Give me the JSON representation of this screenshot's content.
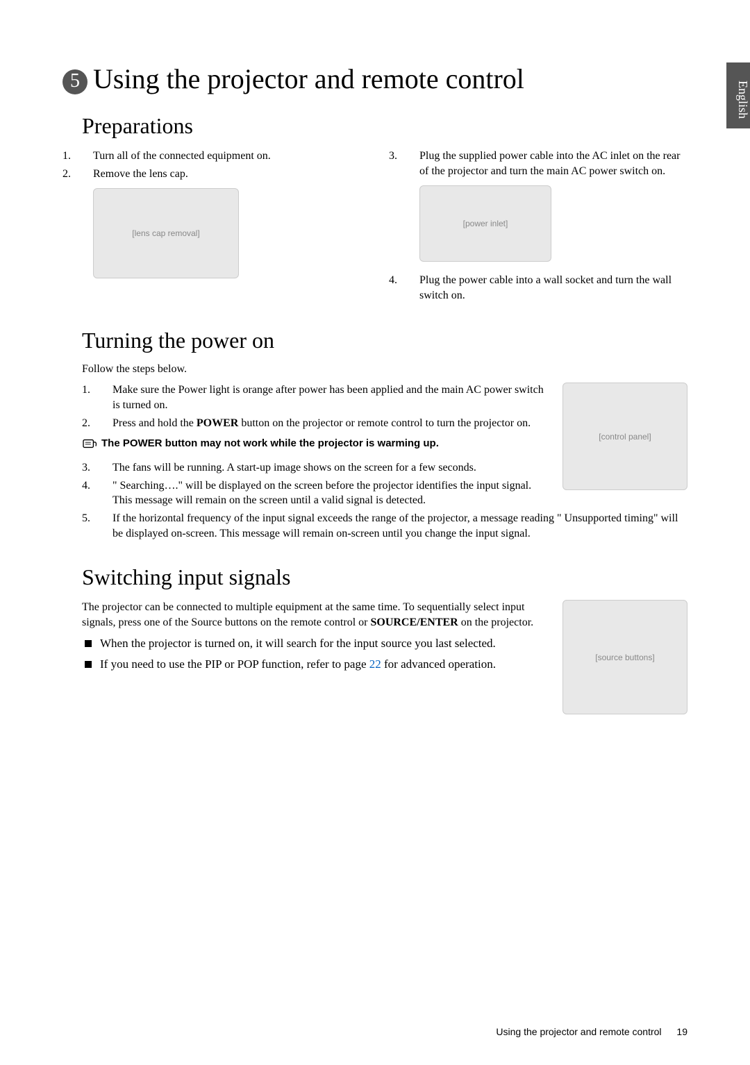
{
  "language_tab": "English",
  "chapter_number": "5",
  "main_title": "Using the projector and remote control",
  "preparations": {
    "heading": "Preparations",
    "left_list": [
      "Turn all of the connected equipment on.",
      "Remove the lens cap."
    ],
    "right_list_3": "Plug the supplied power cable into the AC inlet on the rear of the projector and turn the main AC power switch on.",
    "right_list_4": "Plug the power cable into a wall socket and turn the wall switch on."
  },
  "turning_on": {
    "heading": "Turning the power on",
    "intro": "Follow the steps below.",
    "items_1_2": [
      "Make sure the Power light is orange after power has been applied and the main AC power switch is turned on.",
      "Press and hold the POWER button on the projector or remote control to turn the projector on."
    ],
    "note": "The POWER button may not work while the projector is warming up.",
    "items_3_5": [
      "The fans will be running. A start-up image shows on the screen for a few seconds.",
      "\" Searching….\" will be displayed on the screen before the projector identifies the input signal. This message will remain on the screen until a valid signal is detected.",
      "If the horizontal frequency of the input signal exceeds the range of the projector, a message reading \" Unsupported timing\" will be displayed on-screen. This message will remain on-screen until you change the input signal."
    ]
  },
  "switching": {
    "heading": "Switching input signals",
    "intro": "The projector can be connected to multiple equipment at the same time. To sequentially select input signals, press one of the Source buttons on the remote control or SOURCE/ENTER on the projector.",
    "bullets": [
      "When the projector is turned on, it will search for the input source you last selected.",
      "If you need to use the PIP or POP function, refer to page 22 for advanced operation."
    ],
    "link_page": "22"
  },
  "footer": {
    "text": "Using the projector and remote control",
    "page": "19"
  },
  "image_alts": {
    "lens": "[lens cap removal]",
    "power": "[power inlet]",
    "panel1": "[control panel]",
    "panel2": "[source buttons]"
  }
}
